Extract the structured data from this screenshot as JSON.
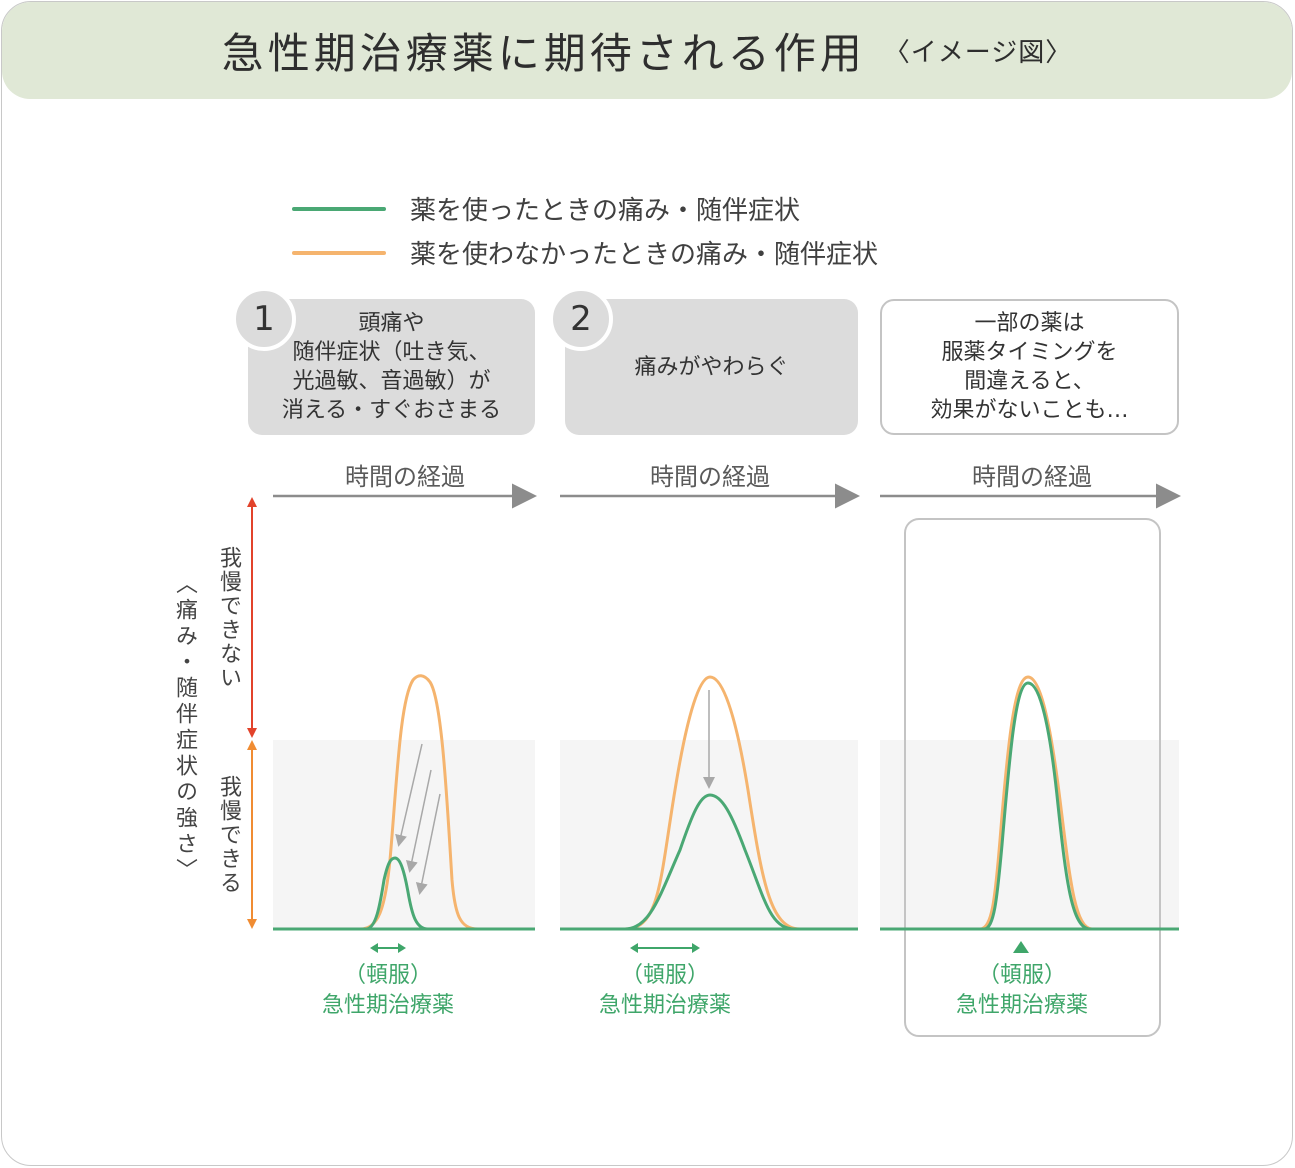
{
  "header": {
    "title": "急性期治療薬に期待される作用",
    "subtitle": "〈イメージ図〉"
  },
  "legend": {
    "with_drug": "薬を使ったときの痛み・随伴症状",
    "without_drug": "薬を使わなかったときの痛み・随伴症状"
  },
  "colors": {
    "with_drug": "#4aa874",
    "without_drug": "#f5b46e",
    "header_bg": "#e0e8d6"
  },
  "axis": {
    "y_title": "〈痛み・随伴症状の強さ〉",
    "unbearable": "我慢できない",
    "bearable": "我慢できる"
  },
  "panels": [
    {
      "number": "1",
      "text": "頭痛や\n随伴症状（吐き気、\n光過敏、音過敏）が\n消える・すぐおさまる",
      "time_label": "時間の経過",
      "med_label_1": "（頓服）",
      "med_label_2": "急性期治療薬"
    },
    {
      "number": "2",
      "text": "痛みがやわらぐ",
      "time_label": "時間の経過",
      "med_label_1": "（頓服）",
      "med_label_2": "急性期治療薬"
    },
    {
      "number": "",
      "text": "一部の薬は\n服薬タイミングを\n間違えると、\n効果がないことも…",
      "time_label": "時間の経過",
      "med_label_1": "（頓服）",
      "med_label_2": "急性期治療薬"
    }
  ]
}
